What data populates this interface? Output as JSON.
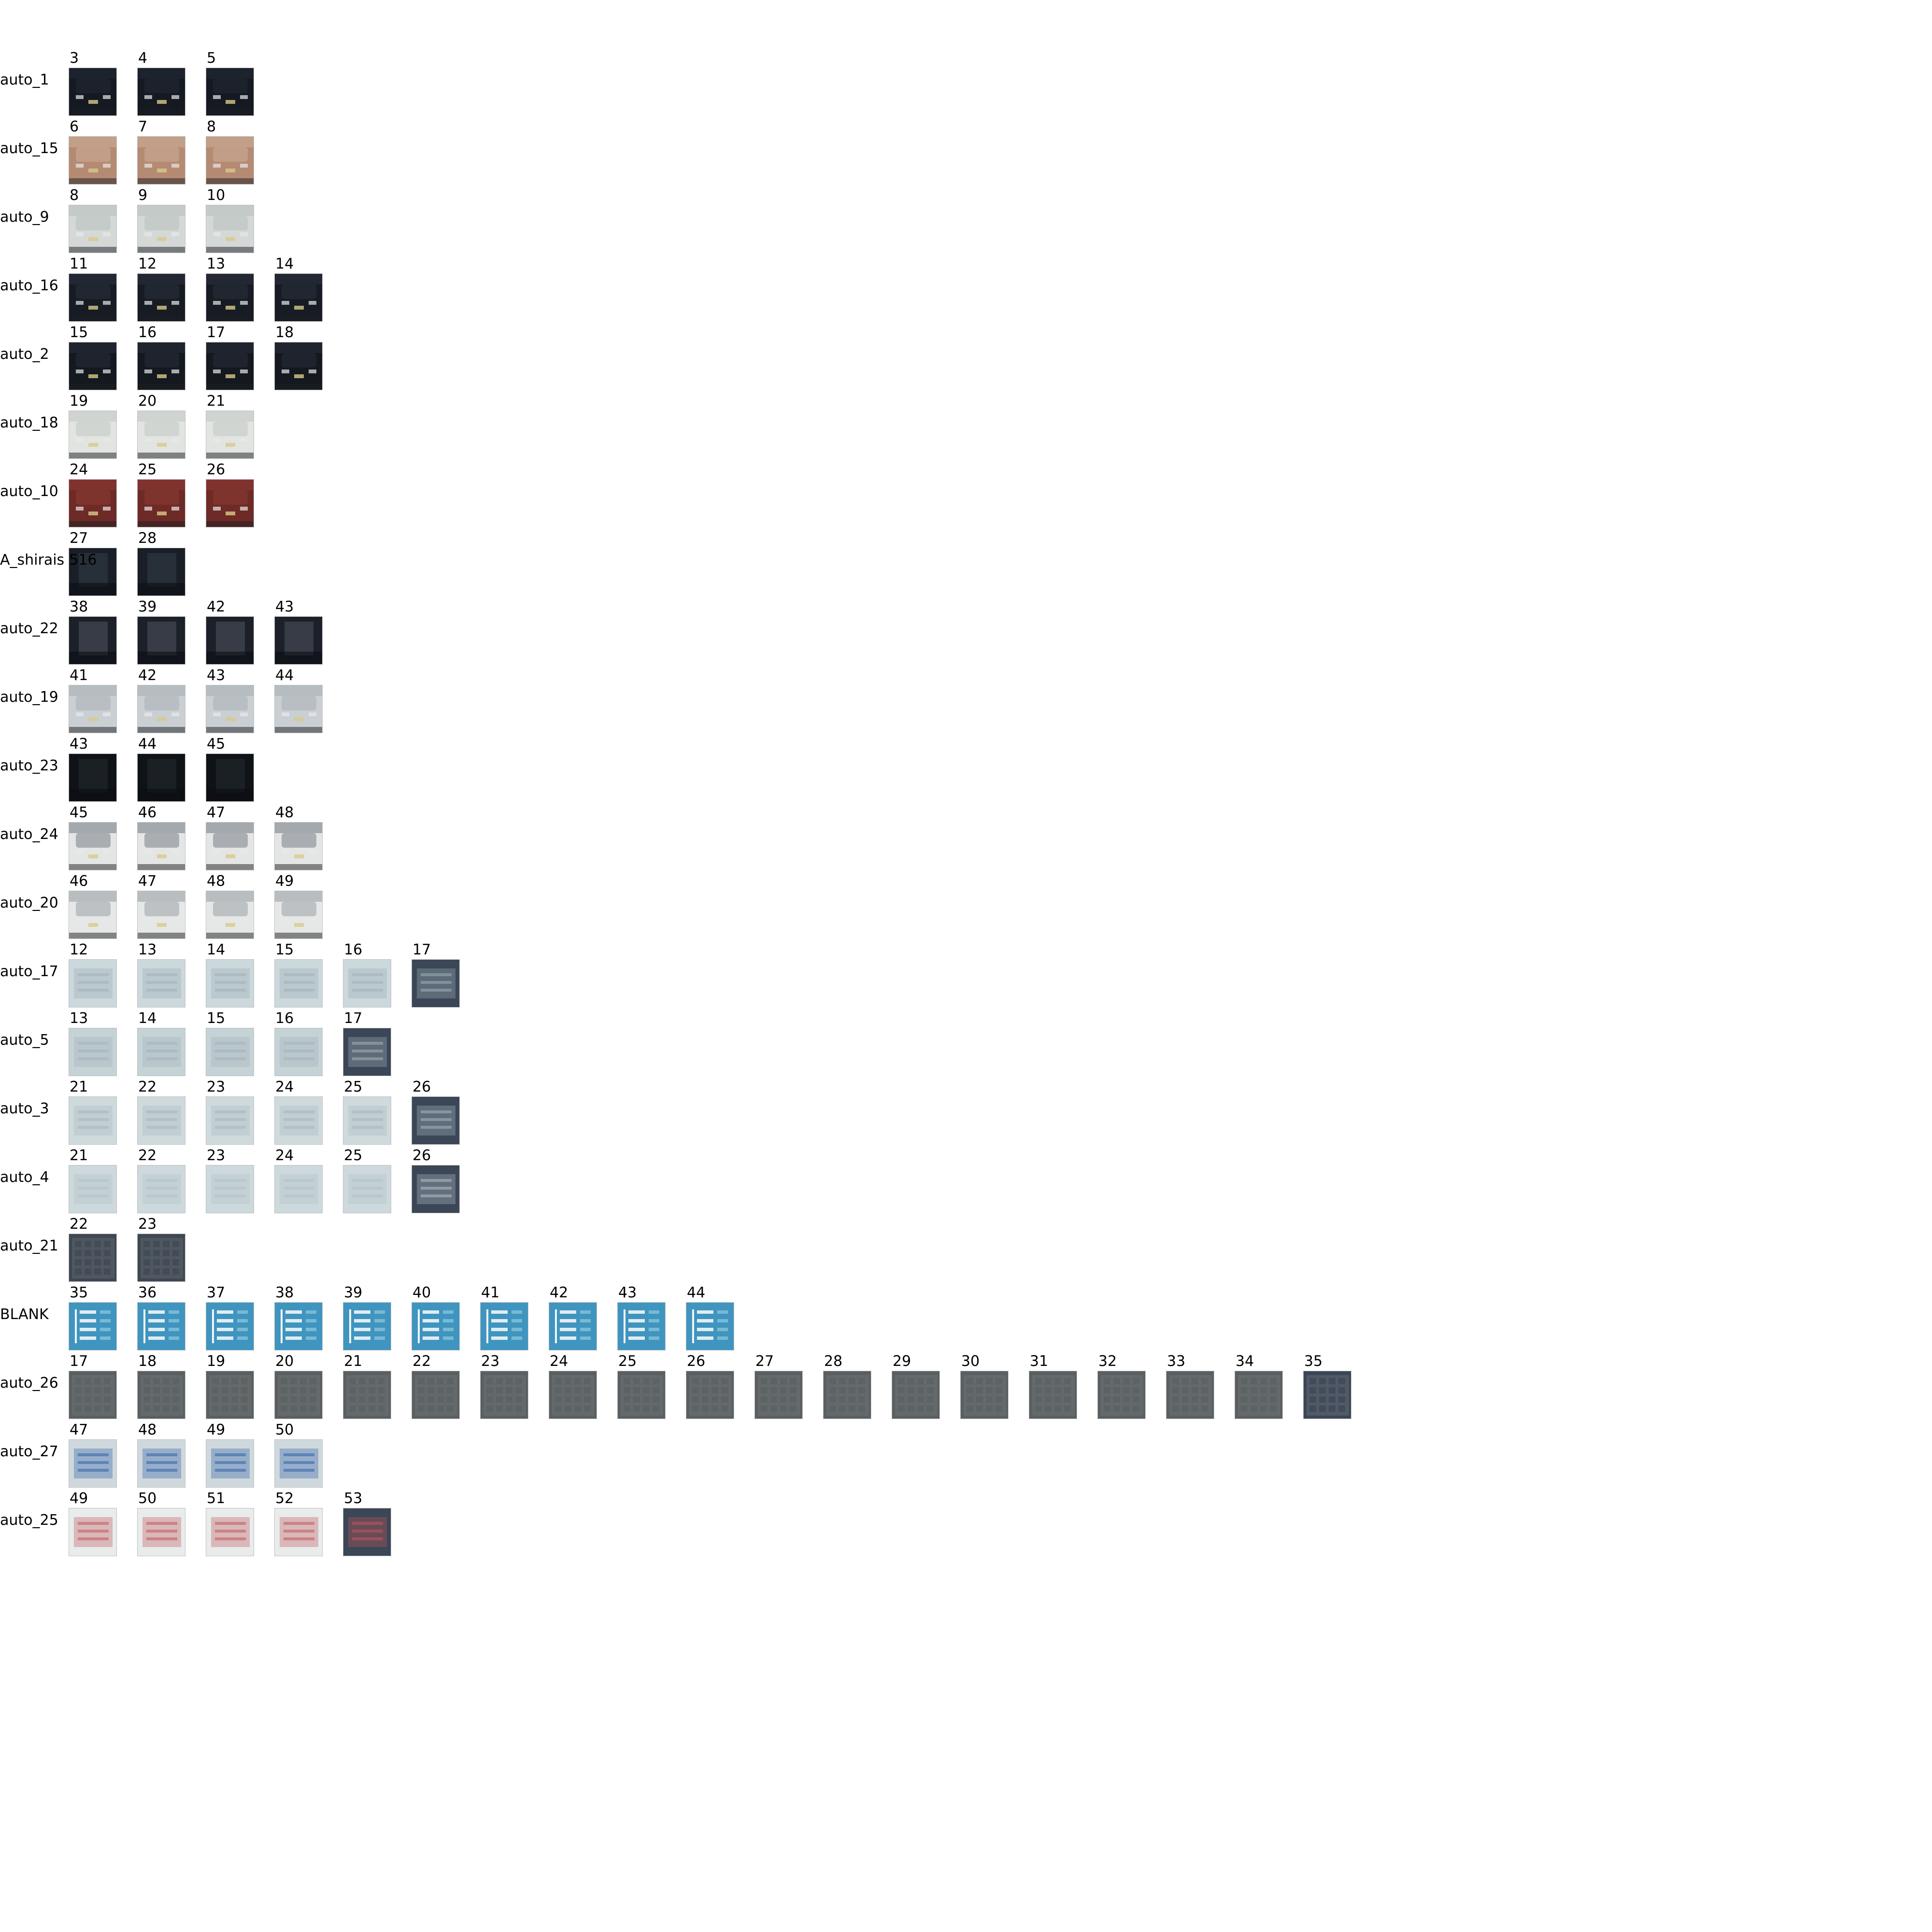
{
  "tracks": [
    {
      "label": "auto_1",
      "kind": "car",
      "colors": [
        "#151a22",
        "#222a35"
      ],
      "frames": [
        "3",
        "4",
        "5"
      ]
    },
    {
      "label": "auto_15",
      "kind": "car",
      "colors": [
        "#b58a73",
        "#ccad98"
      ],
      "frames": [
        "6",
        "7",
        "8"
      ]
    },
    {
      "label": "auto_9",
      "kind": "car",
      "colors": [
        "#d4d9d8",
        "#b8bfbe"
      ],
      "frames": [
        "8",
        "9",
        "10"
      ]
    },
    {
      "label": "auto_16",
      "kind": "car",
      "colors": [
        "#171b24",
        "#2a313d"
      ],
      "frames": [
        "11",
        "12",
        "13",
        "14"
      ]
    },
    {
      "label": "auto_2",
      "kind": "car",
      "colors": [
        "#14181f",
        "#262d38"
      ],
      "frames": [
        "15",
        "16",
        "17",
        "18"
      ]
    },
    {
      "label": "auto_18",
      "kind": "car",
      "colors": [
        "#e1e4e1",
        "#c4c9c6"
      ],
      "frames": [
        "19",
        "20",
        "21"
      ]
    },
    {
      "label": "auto_10",
      "kind": "car",
      "colors": [
        "#6e2a26",
        "#8c3b33"
      ],
      "frames": [
        "24",
        "25",
        "26"
      ]
    },
    {
      "label": "A_shirais",
      "label_extra": "516",
      "kind": "dark",
      "colors": [
        "#1a1f27",
        "#384350"
      ],
      "frames": [
        "27",
        "28"
      ]
    },
    {
      "label": "auto_22",
      "kind": "dark",
      "colors": [
        "#1c2028",
        "#59606a"
      ],
      "frames": [
        "38",
        "39",
        "42",
        "43"
      ]
    },
    {
      "label": "auto_19",
      "kind": "car",
      "colors": [
        "#c9cfd2",
        "#a9b1b6"
      ],
      "frames": [
        "41",
        "42",
        "43",
        "44"
      ]
    },
    {
      "label": "auto_23",
      "kind": "dark",
      "colors": [
        "#0f1317",
        "#2b3138"
      ],
      "frames": [
        "43",
        "44",
        "45"
      ]
    },
    {
      "label": "auto_24",
      "kind": "car",
      "colors": [
        "#e4e6e5",
        "#7a8088"
      ],
      "frames": [
        "45",
        "46",
        "47",
        "48"
      ]
    },
    {
      "label": "auto_20",
      "kind": "car",
      "colors": [
        "#e6e8e7",
        "#9aa0a6"
      ],
      "frames": [
        "46",
        "47",
        "48",
        "49"
      ]
    },
    {
      "label": "auto_17",
      "kind": "sign",
      "colors": [
        "#cbd8dc",
        "#9fb0b8"
      ],
      "frames": [
        "12",
        "13",
        "14",
        "15",
        "16",
        "17"
      ]
    },
    {
      "label": "auto_5",
      "kind": "sign",
      "colors": [
        "#c5d3d7",
        "#a3b3b9"
      ],
      "frames": [
        "13",
        "14",
        "15",
        "16",
        "17"
      ]
    },
    {
      "label": "auto_3",
      "kind": "sign",
      "colors": [
        "#cfdadd",
        "#a5b6bd"
      ],
      "frames": [
        "21",
        "22",
        "23",
        "24",
        "25",
        "26"
      ]
    },
    {
      "label": "auto_4",
      "kind": "sign",
      "colors": [
        "#cdd9dc",
        "#b1c1c6"
      ],
      "frames": [
        "21",
        "22",
        "23",
        "24",
        "25",
        "26"
      ]
    },
    {
      "label": "auto_21",
      "kind": "grid",
      "colors": [
        "#3f4751",
        "#6c7580"
      ],
      "frames": [
        "22",
        "23"
      ]
    },
    {
      "label": "BLANK",
      "kind": "blue",
      "colors": [
        "#3f95bf",
        "#7fbcd6"
      ],
      "frames": [
        "35",
        "36",
        "37",
        "38",
        "39",
        "40",
        "41",
        "42",
        "43",
        "44"
      ]
    },
    {
      "label": "auto_26",
      "kind": "grid",
      "colors": [
        "#5a5f62",
        "#787d80"
      ],
      "frames": [
        "17",
        "18",
        "19",
        "20",
        "21",
        "22",
        "23",
        "24",
        "25",
        "26",
        "27",
        "28",
        "29",
        "30",
        "31",
        "32",
        "33",
        "34",
        "35"
      ]
    },
    {
      "label": "auto_27",
      "kind": "sign",
      "colors": [
        "#cfd8dc",
        "#2f62a8"
      ],
      "frames": [
        "47",
        "48",
        "49",
        "50"
      ]
    },
    {
      "label": "auto_25",
      "kind": "sign",
      "colors": [
        "#e8eceb",
        "#c0575d"
      ],
      "frames": [
        "49",
        "50",
        "51",
        "52",
        "53"
      ]
    }
  ]
}
